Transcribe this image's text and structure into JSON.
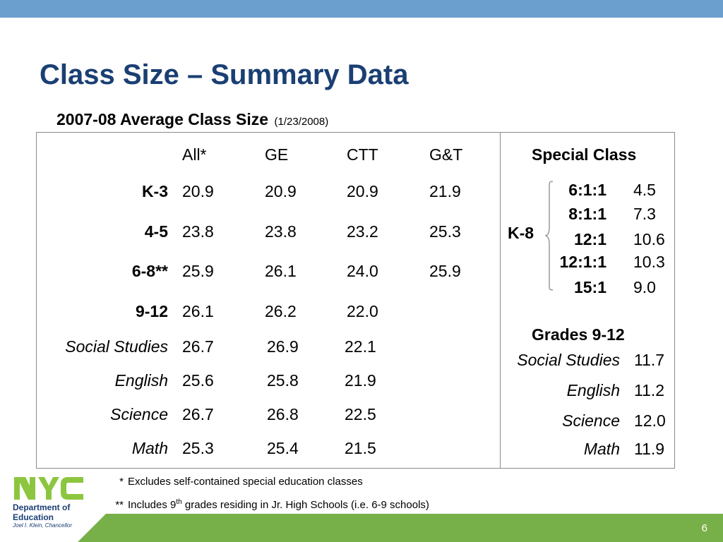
{
  "slide": {
    "title": "Class Size – Summary Data",
    "subtitle": "2007-08 Average Class Size",
    "subtitle_date": "(1/23/2008)",
    "page_number": "6",
    "colors": {
      "top_bar": "#6b9fce",
      "title": "#1a3f73",
      "bottom_bar": "#77b048"
    }
  },
  "main_table": {
    "headers": [
      "All*",
      "GE",
      "CTT",
      "G&T"
    ],
    "rows": [
      {
        "label": "K-3",
        "values": [
          "20.9",
          "20.9",
          "20.9",
          "21.9"
        ]
      },
      {
        "label": "4-5",
        "values": [
          "23.8",
          "23.8",
          "23.2",
          "25.3"
        ]
      },
      {
        "label": "6-8**",
        "values": [
          "25.9",
          "26.1",
          "24.0",
          "25.9"
        ]
      },
      {
        "label": "9-12",
        "values": [
          "26.1",
          "26.2",
          "22.0"
        ]
      },
      {
        "label": "Social Studies",
        "values": [
          "26.7",
          "26.9",
          "22.1"
        ]
      },
      {
        "label": "English",
        "values": [
          "25.6",
          "25.8",
          "21.9"
        ]
      },
      {
        "label": "Science",
        "values": [
          "26.7",
          "26.8",
          "22.5"
        ]
      },
      {
        "label": "Math",
        "values": [
          "25.3",
          "25.4",
          "21.5"
        ]
      }
    ]
  },
  "special_class": {
    "header": "Special Class",
    "k8_label": "K-8",
    "ratios": [
      {
        "ratio": "6:1:1",
        "value": "4.5"
      },
      {
        "ratio": "8:1:1",
        "value": "7.3"
      },
      {
        "ratio": "12:1",
        "value": "10.6"
      },
      {
        "ratio": "12:1:1",
        "value": "10.3"
      },
      {
        "ratio": "15:1",
        "value": "9.0"
      }
    ],
    "grades_header": "Grades 9-12",
    "subjects": [
      {
        "label": "Social Studies",
        "value": "11.7"
      },
      {
        "label": "English",
        "value": "11.2"
      },
      {
        "label": "Science",
        "value": "12.0"
      },
      {
        "label": "Math",
        "value": "11.9"
      }
    ]
  },
  "footnotes": {
    "one": {
      "mark": "*",
      "text": "Excludes self-contained special education classes"
    },
    "two": {
      "mark": "**",
      "text_before": "Includes 9",
      "sup": "th",
      "text_after": " grades residing in Jr. High Schools (i.e. 6-9 schools)"
    }
  },
  "logo": {
    "mark": "NYC",
    "line1": "Department of",
    "line2": "Education",
    "line3": "Joel I. Klein, Chancellor"
  }
}
